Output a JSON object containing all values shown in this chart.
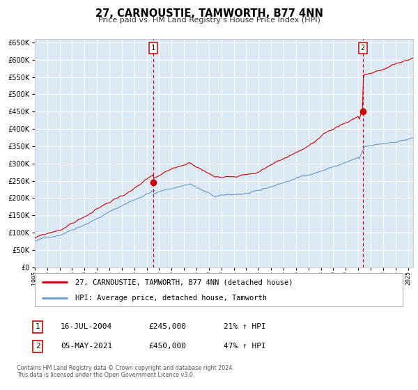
{
  "title": "27, CARNOUSTIE, TAMWORTH, B77 4NN",
  "subtitle": "Price paid vs. HM Land Registry's House Price Index (HPI)",
  "bg_color": "#dce9f5",
  "fig_bg_color": "#ffffff",
  "red_color": "#cc0000",
  "blue_color": "#6699cc",
  "grid_color": "#ffffff",
  "marker1_date_x": 2004.54,
  "marker1_y": 245000,
  "marker2_date_x": 2021.37,
  "marker2_y": 450000,
  "legend_line1": "27, CARNOUSTIE, TAMWORTH, B77 4NN (detached house)",
  "legend_line2": "HPI: Average price, detached house, Tamworth",
  "ylim": [
    0,
    660000
  ],
  "xlim_start": 1995.0,
  "xlim_end": 2025.4,
  "footer1": "Contains HM Land Registry data © Crown copyright and database right 2024.",
  "footer2": "This data is licensed under the Open Government Licence v3.0.",
  "ann1_date": "16-JUL-2004",
  "ann1_price": "£245,000",
  "ann1_hpi": "21% ↑ HPI",
  "ann2_date": "05-MAY-2021",
  "ann2_price": "£450,000",
  "ann2_hpi": "47% ↑ HPI"
}
